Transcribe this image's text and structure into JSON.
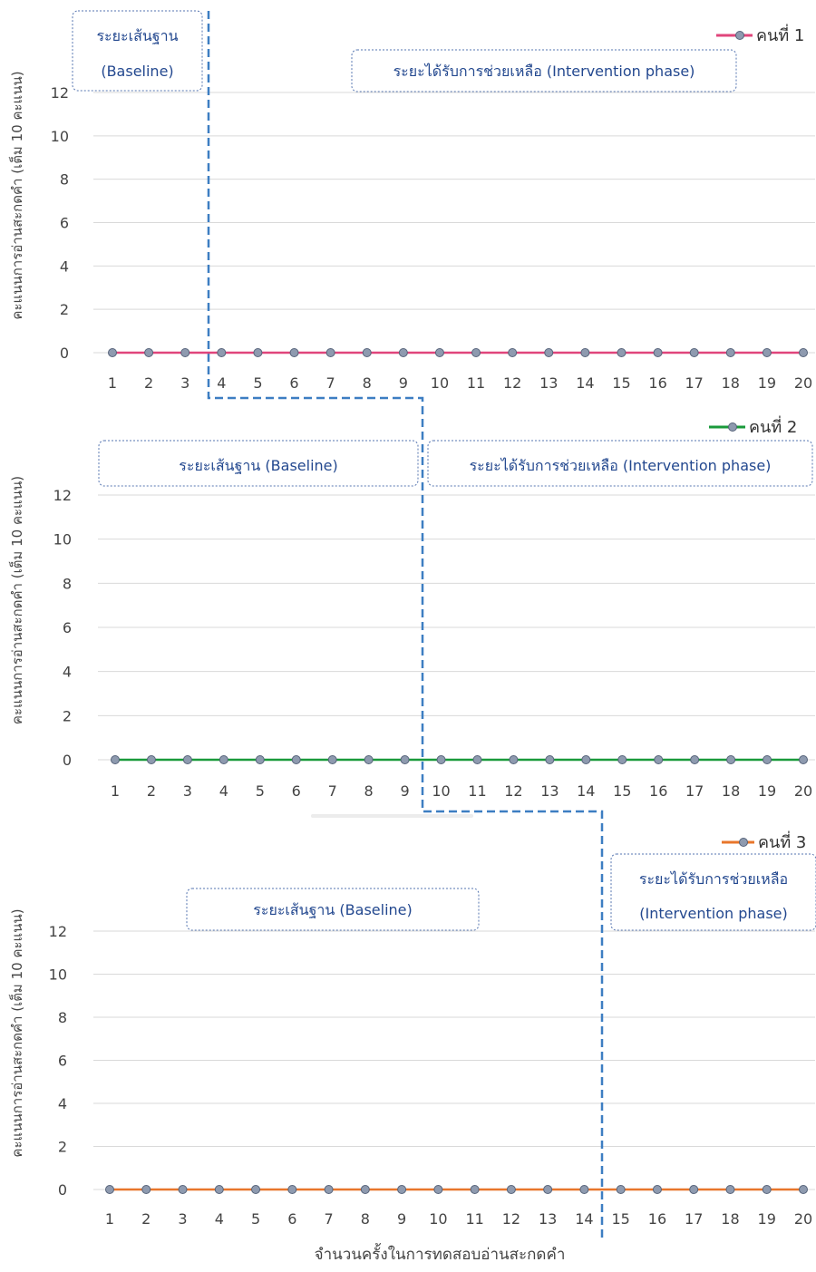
{
  "chart_data": [
    {
      "type": "line",
      "ylabel": "คะแนนการอ่านสะกดคำ (เต็ม 10 คะแนน)",
      "ylim": [
        0,
        12
      ],
      "yticks": [
        0,
        2,
        4,
        6,
        8,
        10,
        12
      ],
      "categories": [
        "1",
        "2",
        "3",
        "4",
        "5",
        "6",
        "7",
        "8",
        "9",
        "10",
        "11",
        "12",
        "13",
        "14",
        "15",
        "16",
        "17",
        "18",
        "19",
        "20"
      ],
      "series": [
        {
          "name": "คนที่ 1",
          "color": "#e0457b",
          "values": [
            0,
            0,
            0,
            0,
            0,
            0,
            0,
            0,
            0,
            0,
            0,
            0,
            0,
            0,
            0,
            0,
            0,
            0,
            0,
            0
          ]
        }
      ],
      "legend": "top-right",
      "grid": true,
      "annotations": {
        "baseline_lines": [
          "ระยะเส้นฐาน",
          "(Baseline)"
        ],
        "intervention_lines": [
          "ระยะได้รับการช่วยเหลือ (Intervention phase)"
        ]
      },
      "phase_change_after": 3
    },
    {
      "type": "line",
      "ylabel": "คะแนนการอ่านสะกดคำ (เต็ม 10 คะแนน)",
      "ylim": [
        0,
        12
      ],
      "yticks": [
        0,
        2,
        4,
        6,
        8,
        10,
        12
      ],
      "categories": [
        "1",
        "2",
        "3",
        "4",
        "5",
        "6",
        "7",
        "8",
        "9",
        "10",
        "11",
        "12",
        "13",
        "14",
        "15",
        "16",
        "17",
        "18",
        "19",
        "20"
      ],
      "series": [
        {
          "name": "คนที่ 2",
          "color": "#1a9a3b",
          "values": [
            0,
            0,
            0,
            0,
            0,
            0,
            0,
            0,
            0,
            0,
            0,
            0,
            0,
            0,
            0,
            0,
            0,
            0,
            0,
            0
          ]
        }
      ],
      "legend": "top-right",
      "grid": true,
      "annotations": {
        "baseline_lines": [
          "ระยะเส้นฐาน (Baseline)"
        ],
        "intervention_lines": [
          "ระยะได้รับการช่วยเหลือ (Intervention phase)"
        ]
      },
      "phase_change_after": 9
    },
    {
      "type": "line",
      "ylabel": "คะแนนการอ่านสะกดคำ (เต็ม 10 คะแนน)",
      "xlabel": "จำนวนครั้งในการทดสอบอ่านสะกดคำ",
      "ylim": [
        0,
        12
      ],
      "yticks": [
        0,
        2,
        4,
        6,
        8,
        10,
        12
      ],
      "categories": [
        "1",
        "2",
        "3",
        "4",
        "5",
        "6",
        "7",
        "8",
        "9",
        "10",
        "11",
        "12",
        "13",
        "14",
        "15",
        "16",
        "17",
        "18",
        "19",
        "20"
      ],
      "series": [
        {
          "name": "คนที่ 3",
          "color": "#e8762b",
          "values": [
            0,
            0,
            0,
            0,
            0,
            0,
            0,
            0,
            0,
            0,
            0,
            0,
            0,
            0,
            0,
            0,
            0,
            0,
            0,
            0
          ]
        }
      ],
      "legend": "top-right",
      "grid": true,
      "annotations": {
        "baseline_lines": [
          "ระยะเส้นฐาน (Baseline)"
        ],
        "intervention_lines": [
          "ระยะได้รับการช่วยเหลือ",
          "(Intervention phase)"
        ]
      },
      "phase_change_after": 14
    }
  ],
  "colors": {
    "marker_fill": "#8e9aaf",
    "marker_stroke": "#56637a",
    "phase_line": "#3d7ec2",
    "box_border": "#5575b0",
    "annotation_text": "#23488f",
    "grid": "#d9d9d9",
    "tick_text": "#444444"
  }
}
